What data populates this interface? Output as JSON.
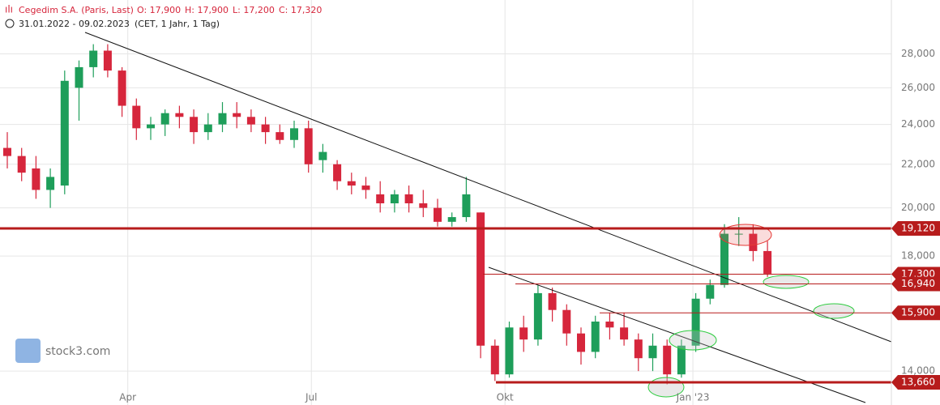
{
  "chart_data": {
    "type": "candlestick",
    "title": "Cegedim S.A. (Paris, Last)",
    "ohlc_header": [
      "O: 17,900",
      "H: 17,900",
      "L: 17,200",
      "C: 17,320"
    ],
    "date_range": "31.01.2022 - 09.02.2023",
    "period": "(CET, 1 Jahr, 1 Tag)",
    "watermark": "stock3.com",
    "log_scale": true,
    "grid": true,
    "up_color": "#1e9e5a",
    "down_color": "#d6263c",
    "level_color": "#b71c1c",
    "ylim": [
      13000,
      31500
    ],
    "yticks": [
      {
        "value": 14000,
        "label": "14,000"
      },
      {
        "value": 18000,
        "label": "18,000"
      },
      {
        "value": 20000,
        "label": "20,000"
      },
      {
        "value": 22000,
        "label": "22,000"
      },
      {
        "value": 24000,
        "label": "24,000"
      },
      {
        "value": 26000,
        "label": "26,000"
      },
      {
        "value": 28000,
        "label": "28,000"
      }
    ],
    "xticks": [
      {
        "value": 8.4,
        "label": "Apr"
      },
      {
        "value": 21.2,
        "label": "Jul"
      },
      {
        "value": 34.7,
        "label": "Okt"
      },
      {
        "value": 47.8,
        "label": "Jan '23"
      }
    ],
    "open": [
      22800,
      22400,
      21800,
      20800,
      21000,
      26000,
      27200,
      28200,
      27000,
      25000,
      23800,
      24000,
      24600,
      24400,
      23600,
      24000,
      24600,
      24400,
      24000,
      23600,
      23200,
      23800,
      22200,
      22000,
      21200,
      21000,
      20600,
      20200,
      20600,
      20200,
      20000,
      19400,
      19600,
      19800,
      14800,
      13900,
      15400,
      15000,
      16600,
      16000,
      15200,
      14600,
      15600,
      15400,
      15000,
      14400,
      14800,
      13900,
      14800,
      16400,
      16900,
      18900,
      18900,
      18200
    ],
    "high": [
      23600,
      22800,
      22400,
      21800,
      27000,
      27600,
      28600,
      28600,
      27200,
      25400,
      24400,
      24800,
      25000,
      24800,
      24600,
      25200,
      25200,
      24800,
      24400,
      24000,
      24200,
      24200,
      23000,
      22200,
      21600,
      21400,
      21200,
      20800,
      21000,
      20800,
      20400,
      19800,
      21400,
      19800,
      15000,
      15600,
      15800,
      16900,
      16800,
      16200,
      15400,
      15800,
      15900,
      15900,
      15200,
      15200,
      15000,
      15000,
      16600,
      17100,
      19300,
      19600,
      19300,
      18600
    ],
    "low": [
      21800,
      21200,
      20400,
      20000,
      20600,
      24200,
      26600,
      26600,
      24400,
      23200,
      23200,
      23400,
      23800,
      23000,
      23200,
      23600,
      23800,
      23600,
      23000,
      23000,
      22800,
      21600,
      21600,
      20800,
      20600,
      20400,
      19800,
      19800,
      19800,
      19600,
      19200,
      19200,
      19400,
      14400,
      13700,
      13800,
      14600,
      14800,
      15600,
      14800,
      14200,
      14400,
      15000,
      14800,
      14000,
      14000,
      13600,
      13800,
      14600,
      16200,
      16800,
      18400,
      17800,
      17200
    ],
    "close": [
      22400,
      21600,
      20800,
      21400,
      26400,
      27200,
      28200,
      27000,
      25000,
      23800,
      24000,
      24600,
      24400,
      23600,
      24000,
      24600,
      24400,
      24000,
      23600,
      23200,
      23800,
      22000,
      22600,
      21200,
      21000,
      20800,
      20200,
      20600,
      20200,
      20000,
      19400,
      19600,
      20600,
      14800,
      13900,
      15400,
      15000,
      16600,
      16000,
      15200,
      14600,
      15600,
      15400,
      15000,
      14400,
      14800,
      13900,
      14800,
      16400,
      16900,
      18900,
      18900,
      18200,
      17320
    ],
    "levels": [
      {
        "value": 19120,
        "label": "19,120"
      },
      {
        "value": 17300,
        "label": "17,300"
      },
      {
        "value": 16940,
        "label": "16,940"
      },
      {
        "value": 15900,
        "label": "15,900"
      },
      {
        "value": 13660,
        "label": "13,660"
      }
    ]
  }
}
